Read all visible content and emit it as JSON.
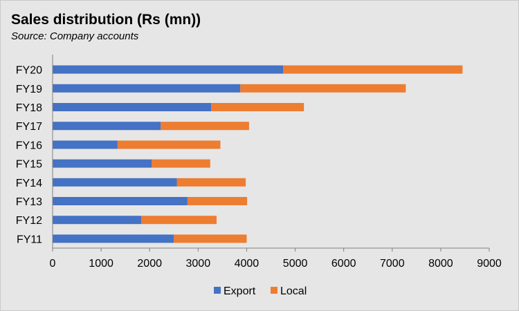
{
  "chart_data": {
    "type": "bar",
    "orientation": "horizontal",
    "stacked": true,
    "title": "Sales distribution (Rs (mn))",
    "subtitle": "Source: Company accounts",
    "categories": [
      "FY20",
      "FY19",
      "FY18",
      "FY17",
      "FY16",
      "FY15",
      "FY14",
      "FY13",
      "FY12",
      "FY11"
    ],
    "series": [
      {
        "name": "Export",
        "color": "#4472c4",
        "values": [
          4750,
          3870,
          3270,
          2230,
          1340,
          2040,
          2560,
          2780,
          1830,
          2500
        ]
      },
      {
        "name": "Local",
        "color": "#ed7d31",
        "values": [
          3700,
          3410,
          1910,
          1820,
          2120,
          1210,
          1420,
          1230,
          1550,
          1500
        ]
      }
    ],
    "x_ticks": [
      "0",
      "1000",
      "2000",
      "3000",
      "4000",
      "5000",
      "6000",
      "7000",
      "8000",
      "9000"
    ],
    "xlim": [
      0,
      9000
    ],
    "grid": false,
    "legend_position": "bottom"
  }
}
